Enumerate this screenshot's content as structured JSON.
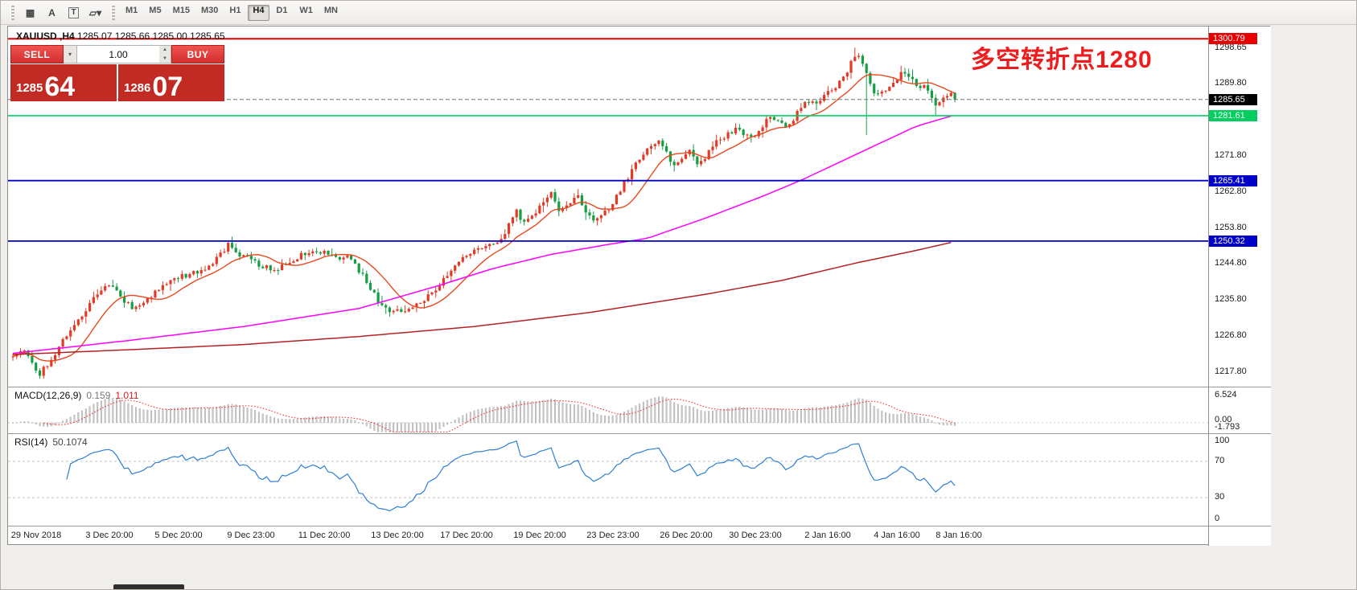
{
  "toolbar": {
    "tools": [
      {
        "name": "grid-icon",
        "glyph": "▦"
      },
      {
        "name": "text-tool-icon",
        "glyph": "A"
      },
      {
        "name": "label-tool-icon",
        "glyph": "T",
        "boxed": true
      },
      {
        "name": "objects-dropdown-icon",
        "glyph": "▱▾"
      }
    ],
    "timeframes": [
      {
        "label": "M1",
        "active": false
      },
      {
        "label": "M5",
        "active": false
      },
      {
        "label": "M15",
        "active": false
      },
      {
        "label": "M30",
        "active": false
      },
      {
        "label": "H1",
        "active": false
      },
      {
        "label": "H4",
        "active": true
      },
      {
        "label": "D1",
        "active": false
      },
      {
        "label": "W1",
        "active": false
      },
      {
        "label": "MN",
        "active": false
      }
    ]
  },
  "chart": {
    "title_symbol": "XAUUSD ,H4",
    "title_ohlc": "1285.07 1285.66 1285.00 1285.65",
    "annotation": "多空转折点1280"
  },
  "trade_panel": {
    "sell_label": "SELL",
    "buy_label": "BUY",
    "volume": "1.00",
    "sell_price_main": "1285",
    "sell_price_pips": "64",
    "buy_price_main": "1286",
    "buy_price_pips": "07"
  },
  "chart_data": {
    "type": "candlestick",
    "symbol": "XAUUSD",
    "timeframe": "H4",
    "bars": 246,
    "seed": 11,
    "ylim": [
      1214.2,
      1303.9
    ],
    "y_ticks": [
      "1298.65",
      "1289.80",
      "1280.80",
      "1271.80",
      "1262.80",
      "1253.80",
      "1244.80",
      "1235.80",
      "1226.80",
      "1217.80"
    ],
    "price_keypoints": [
      [
        0,
        1221.5
      ],
      [
        3,
        1223.5
      ],
      [
        5,
        1219.5
      ],
      [
        7,
        1217.2
      ],
      [
        10,
        1221
      ],
      [
        14,
        1227
      ],
      [
        18,
        1232
      ],
      [
        22,
        1237.5
      ],
      [
        25,
        1239.5
      ],
      [
        28,
        1236.5
      ],
      [
        31,
        1233.5
      ],
      [
        34,
        1235
      ],
      [
        38,
        1238.5
      ],
      [
        42,
        1241
      ],
      [
        46,
        1242
      ],
      [
        50,
        1243.5
      ],
      [
        53,
        1246
      ],
      [
        56,
        1249.3
      ],
      [
        59,
        1247
      ],
      [
        62,
        1245.5
      ],
      [
        65,
        1244
      ],
      [
        68,
        1243.2
      ],
      [
        72,
        1245.5
      ],
      [
        76,
        1247.3
      ],
      [
        80,
        1247.8
      ],
      [
        84,
        1246.5
      ],
      [
        88,
        1246
      ],
      [
        92,
        1240
      ],
      [
        95,
        1235.5
      ],
      [
        98,
        1233.2
      ],
      [
        101,
        1232.5
      ],
      [
        104,
        1234
      ],
      [
        107,
        1236
      ],
      [
        110,
        1238.5
      ],
      [
        113,
        1242
      ],
      [
        116,
        1245.5
      ],
      [
        119,
        1247.5
      ],
      [
        122,
        1248.5
      ],
      [
        125,
        1249.5
      ],
      [
        127,
        1250.5
      ],
      [
        129,
        1255
      ],
      [
        131,
        1257.5
      ],
      [
        133,
        1254.5
      ],
      [
        135,
        1256
      ],
      [
        138,
        1260.5
      ],
      [
        140,
        1262
      ],
      [
        142,
        1258.5
      ],
      [
        145,
        1260
      ],
      [
        147,
        1261.5
      ],
      [
        149,
        1258
      ],
      [
        151,
        1256
      ],
      [
        153,
        1257
      ],
      [
        155,
        1258.5
      ],
      [
        158,
        1263
      ],
      [
        161,
        1268
      ],
      [
        164,
        1272.5
      ],
      [
        166,
        1274.5
      ],
      [
        168,
        1275.8
      ],
      [
        170,
        1272
      ],
      [
        172,
        1269
      ],
      [
        174,
        1271
      ],
      [
        176,
        1272.5
      ],
      [
        178,
        1269
      ],
      [
        180,
        1271
      ],
      [
        183,
        1275
      ],
      [
        186,
        1277
      ],
      [
        188,
        1278.2
      ],
      [
        190,
        1277
      ],
      [
        193,
        1276.5
      ],
      [
        195,
        1279
      ],
      [
        197,
        1281.5
      ],
      [
        199,
        1280
      ],
      [
        201,
        1278.8
      ],
      [
        203,
        1281
      ],
      [
        205,
        1283.5
      ],
      [
        207,
        1285.5
      ],
      [
        209,
        1284.5
      ],
      [
        211,
        1286.5
      ],
      [
        213,
        1288
      ],
      [
        215,
        1290
      ],
      [
        217,
        1293
      ],
      [
        219,
        1296.8
      ],
      [
        221,
        1295
      ],
      [
        223,
        1290
      ],
      [
        224,
        1286.5
      ],
      [
        226,
        1287.5
      ],
      [
        228,
        1288.5
      ],
      [
        230,
        1291
      ],
      [
        231,
        1293.2
      ],
      [
        233,
        1291.5
      ],
      [
        234,
        1290.2
      ],
      [
        236,
        1289
      ],
      [
        238,
        1288.2
      ],
      [
        240,
        1284.8
      ],
      [
        242,
        1285.5
      ],
      [
        244,
        1286.8
      ],
      [
        245,
        1285.6
      ]
    ],
    "ma_fast_period": 12,
    "ma_mid_keypoints": [
      [
        0,
        1222.3
      ],
      [
        30,
        1225.5
      ],
      [
        60,
        1229
      ],
      [
        90,
        1233.5
      ],
      [
        110,
        1239
      ],
      [
        125,
        1243.5
      ],
      [
        140,
        1247
      ],
      [
        155,
        1249.5
      ],
      [
        165,
        1251
      ],
      [
        180,
        1256
      ],
      [
        195,
        1261.5
      ],
      [
        205,
        1265.5
      ],
      [
        215,
        1270
      ],
      [
        225,
        1274.5
      ],
      [
        235,
        1279
      ],
      [
        245,
        1281.8
      ]
    ],
    "ma_slow_keypoints": [
      [
        0,
        1222.0
      ],
      [
        30,
        1223.2
      ],
      [
        60,
        1224.5
      ],
      [
        90,
        1226.5
      ],
      [
        120,
        1229
      ],
      [
        150,
        1232.5
      ],
      [
        180,
        1237
      ],
      [
        200,
        1240.5
      ],
      [
        220,
        1245
      ],
      [
        235,
        1248
      ],
      [
        245,
        1250.2
      ]
    ],
    "hlines": [
      {
        "price": 1300.79,
        "label": "1300.79",
        "color": "#e80000",
        "width": 2
      },
      {
        "price": 1281.61,
        "label": "1281.61",
        "color": "#00cf5f",
        "width": 1.6
      },
      {
        "price": 1265.41,
        "label": "1265.41",
        "color": "#0000c8",
        "width": 1.8
      },
      {
        "price": 1250.32,
        "label": "1250.32",
        "color": "#0000c8",
        "width": 1.8
      }
    ],
    "bid": {
      "price": 1285.65,
      "label": "1285.65",
      "color": "#000000"
    },
    "x_ticks": [
      {
        "label": "29 Nov 2018",
        "bar": 6
      },
      {
        "label": "3 Dec 20:00",
        "bar": 25
      },
      {
        "label": "5 Dec 20:00",
        "bar": 43
      },
      {
        "label": "9 Dec 23:00",
        "bar": 62
      },
      {
        "label": "11 Dec 20:00",
        "bar": 81
      },
      {
        "label": "13 Dec 20:00",
        "bar": 100
      },
      {
        "label": "17 Dec 20:00",
        "bar": 118
      },
      {
        "label": "19 Dec 20:00",
        "bar": 137
      },
      {
        "label": "23 Dec 23:00",
        "bar": 156
      },
      {
        "label": "26 Dec 20:00",
        "bar": 175
      },
      {
        "label": "30 Dec 23:00",
        "bar": 193
      },
      {
        "label": "2 Jan 16:00",
        "bar": 212
      },
      {
        "label": "4 Jan 16:00",
        "bar": 230
      },
      {
        "label": "8 Jan 16:00",
        "bar": 246
      }
    ],
    "macd": {
      "name": "MACD(12,26,9)",
      "value_1": "0.159",
      "value_2": "1.011",
      "axis_max": 6.524,
      "axis_min": -1.793,
      "axis_labels": [
        "6.524",
        "0.00",
        "-1.793"
      ]
    },
    "rsi": {
      "name": "RSI(14)",
      "value": "50.1074",
      "axis_labels": [
        "100",
        "70",
        "30",
        "0"
      ],
      "levels": [
        70,
        30
      ]
    },
    "colors": {
      "bull": "#e23a24",
      "bear": "#169e44",
      "ma_fast": "#e8491d",
      "ma_mid": "#ff00ff",
      "ma_slow": "#b22222",
      "macd_hist": "#c9c9c9",
      "macd_signal": "#ff2a2a",
      "rsi_line": "#2e7fd6"
    }
  }
}
